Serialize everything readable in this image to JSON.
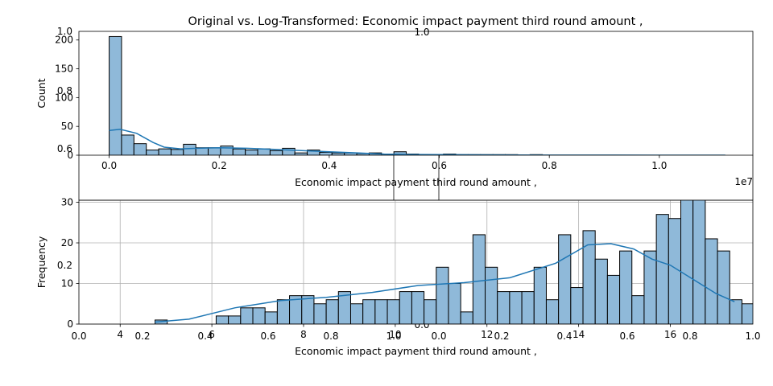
{
  "title": "Original vs. Log-Transformed: Economic impact payment third round amount ,",
  "colors": {
    "bar": "#8fb9d9",
    "kde": "#1f77b4",
    "grid": "#b0b0b0",
    "edge": "#000000"
  },
  "ghost_axes": {
    "top_left_ticks": [
      "0.6",
      "0.8",
      "1.0"
    ],
    "top_center_label": "1.0",
    "bottom_left_ticks": [
      "0.0",
      "0.2",
      "0.4",
      "0.6",
      "0.8",
      "1.0"
    ],
    "bottom_right_ticks": [
      "0.0",
      "0.2",
      "0.4",
      "0.6",
      "0.8",
      "1.0"
    ],
    "bottom_center_label": "0.0"
  },
  "chart_data": [
    {
      "type": "bar",
      "title": "",
      "xlabel": "Economic impact payment third round amount ,",
      "ylabel": "Count",
      "x_offset_label": "1e7",
      "xlim": [
        -0.055,
        1.17
      ],
      "ylim": [
        0,
        215
      ],
      "xticks": [
        0.0,
        0.2,
        0.4,
        0.6,
        0.8,
        1.0
      ],
      "xtick_labels": [
        "0.0",
        "0.2",
        "0.4",
        "0.6",
        "0.8",
        "1.0"
      ],
      "yticks": [
        0,
        50,
        100,
        150,
        200
      ],
      "ytick_labels": [
        "0",
        "50",
        "100",
        "150",
        "200"
      ],
      "grid": false,
      "bin_start": 0.0,
      "bin_width": 0.0225,
      "values": [
        206,
        35,
        20,
        9,
        11,
        10,
        19,
        13,
        13,
        16,
        11,
        9,
        11,
        8,
        12,
        4,
        9,
        5,
        4,
        4,
        3,
        4,
        2,
        6,
        2,
        1,
        1,
        2,
        1,
        1,
        1,
        1,
        1,
        0,
        1,
        0,
        0,
        0,
        0,
        0,
        0,
        0,
        0,
        0,
        0,
        0,
        0,
        0,
        0,
        0
      ],
      "kde": {
        "x": [
          0.0,
          0.02,
          0.05,
          0.08,
          0.1,
          0.13,
          0.16,
          0.2,
          0.25,
          0.3,
          0.35,
          0.4,
          0.45,
          0.5,
          0.55,
          0.6,
          0.7,
          0.8,
          0.9,
          1.0,
          1.12
        ],
        "y": [
          43,
          45,
          38,
          22,
          14,
          11,
          12,
          13,
          12,
          10,
          8,
          6,
          4,
          2,
          1.3,
          1,
          0.5,
          0.2,
          0.1,
          0.05,
          0.03
        ]
      }
    },
    {
      "type": "bar",
      "title": "",
      "xlabel": "Economic impact payment third round amount ,",
      "ylabel": "Frequency",
      "xlim": [
        3.1,
        17.8
      ],
      "ylim": [
        0,
        30.5
      ],
      "xticks": [
        4,
        6,
        8,
        10,
        12,
        14,
        16
      ],
      "xtick_labels": [
        "4",
        "6",
        "8",
        "10",
        "12",
        "14",
        "16"
      ],
      "yticks": [
        0,
        10,
        20,
        30
      ],
      "ytick_labels": [
        "0",
        "10",
        "20",
        "30"
      ],
      "grid": true,
      "bin_start": 4.76,
      "bin_width": 0.2667,
      "values": [
        1,
        0,
        0,
        0,
        0,
        2,
        2,
        4,
        4,
        3,
        6,
        7,
        7,
        5,
        6,
        8,
        5,
        6,
        6,
        6,
        8,
        8,
        6,
        14,
        10,
        3,
        22,
        14,
        8,
        8,
        8,
        14,
        6,
        22,
        9,
        23,
        16,
        12,
        18,
        7,
        18,
        27,
        26,
        34,
        35,
        21,
        18,
        6,
        5,
        2
      ],
      "kde": {
        "x": [
          4.76,
          5.5,
          6.5,
          7.5,
          8.5,
          9.5,
          10.5,
          11.5,
          12.5,
          13.5,
          14.2,
          14.7,
          15.2,
          15.6,
          16.0,
          16.5,
          17.0,
          17.4
        ],
        "y": [
          0.5,
          1.2,
          4,
          5.8,
          6.6,
          7.8,
          9.5,
          10.2,
          11.4,
          15,
          19.5,
          19.8,
          18.5,
          16,
          14.5,
          11,
          7.5,
          5.5
        ]
      }
    }
  ]
}
